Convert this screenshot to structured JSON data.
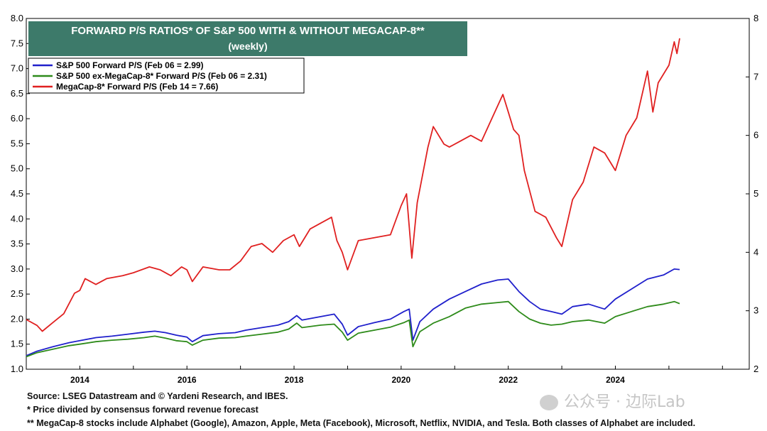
{
  "chart_data": {
    "type": "line",
    "title": "FORWARD P/S RATIOS* OF S&P 500 WITH & WITHOUT MEGACAP-8**",
    "subtitle": "(weekly)",
    "left_axis": {
      "ticks": [
        "1.0",
        "1.5",
        "2.0",
        "2.5",
        "3.0",
        "3.5",
        "4.0",
        "4.5",
        "5.0",
        "5.5",
        "6.0",
        "6.5",
        "7.0",
        "7.5",
        "8.0"
      ],
      "ylim": [
        1.0,
        8.0
      ]
    },
    "right_axis": {
      "ticks": [
        "2",
        "3",
        "4",
        "5",
        "6",
        "7",
        "8"
      ],
      "ylim": [
        2,
        8
      ]
    },
    "x_axis": {
      "ticks": [
        "2014",
        "2016",
        "2018",
        "2020",
        "2022",
        "2024"
      ],
      "xlim": [
        2013.0,
        2026.5
      ]
    },
    "grid": false,
    "legend_position": "top-left",
    "series": [
      {
        "name": "S&P 500 Forward P/S (Feb 06 = 2.99)",
        "color": "#2020cc",
        "axis": "left",
        "points": [
          [
            2013.0,
            1.27
          ],
          [
            2013.2,
            1.36
          ],
          [
            2013.5,
            1.45
          ],
          [
            2013.8,
            1.53
          ],
          [
            2014.0,
            1.57
          ],
          [
            2014.3,
            1.63
          ],
          [
            2014.6,
            1.66
          ],
          [
            2014.9,
            1.7
          ],
          [
            2015.2,
            1.74
          ],
          [
            2015.4,
            1.76
          ],
          [
            2015.6,
            1.73
          ],
          [
            2015.8,
            1.68
          ],
          [
            2016.0,
            1.64
          ],
          [
            2016.1,
            1.55
          ],
          [
            2016.3,
            1.67
          ],
          [
            2016.6,
            1.71
          ],
          [
            2016.9,
            1.73
          ],
          [
            2017.1,
            1.78
          ],
          [
            2017.4,
            1.83
          ],
          [
            2017.7,
            1.88
          ],
          [
            2017.9,
            1.95
          ],
          [
            2018.05,
            2.07
          ],
          [
            2018.15,
            1.98
          ],
          [
            2018.5,
            2.05
          ],
          [
            2018.75,
            2.1
          ],
          [
            2018.9,
            1.9
          ],
          [
            2019.0,
            1.68
          ],
          [
            2019.2,
            1.85
          ],
          [
            2019.5,
            1.93
          ],
          [
            2019.8,
            2.0
          ],
          [
            2020.05,
            2.15
          ],
          [
            2020.15,
            2.2
          ],
          [
            2020.22,
            1.58
          ],
          [
            2020.35,
            1.95
          ],
          [
            2020.6,
            2.2
          ],
          [
            2020.9,
            2.4
          ],
          [
            2021.2,
            2.55
          ],
          [
            2021.5,
            2.7
          ],
          [
            2021.8,
            2.78
          ],
          [
            2022.0,
            2.8
          ],
          [
            2022.2,
            2.55
          ],
          [
            2022.4,
            2.35
          ],
          [
            2022.6,
            2.2
          ],
          [
            2022.8,
            2.15
          ],
          [
            2023.0,
            2.1
          ],
          [
            2023.2,
            2.25
          ],
          [
            2023.5,
            2.3
          ],
          [
            2023.8,
            2.2
          ],
          [
            2024.0,
            2.4
          ],
          [
            2024.3,
            2.6
          ],
          [
            2024.6,
            2.8
          ],
          [
            2024.9,
            2.88
          ],
          [
            2025.1,
            3.0
          ],
          [
            2025.2,
            2.99
          ]
        ]
      },
      {
        "name": "S&P 500 ex-MegaCap-8* Forward P/S (Feb 06 = 2.31)",
        "color": "#2e8b1a",
        "axis": "left",
        "points": [
          [
            2013.0,
            1.25
          ],
          [
            2013.2,
            1.33
          ],
          [
            2013.5,
            1.4
          ],
          [
            2013.8,
            1.47
          ],
          [
            2014.0,
            1.5
          ],
          [
            2014.3,
            1.55
          ],
          [
            2014.6,
            1.58
          ],
          [
            2014.9,
            1.6
          ],
          [
            2015.2,
            1.63
          ],
          [
            2015.4,
            1.66
          ],
          [
            2015.6,
            1.62
          ],
          [
            2015.8,
            1.57
          ],
          [
            2016.0,
            1.55
          ],
          [
            2016.1,
            1.48
          ],
          [
            2016.3,
            1.58
          ],
          [
            2016.6,
            1.62
          ],
          [
            2016.9,
            1.63
          ],
          [
            2017.1,
            1.66
          ],
          [
            2017.4,
            1.7
          ],
          [
            2017.7,
            1.74
          ],
          [
            2017.9,
            1.8
          ],
          [
            2018.05,
            1.92
          ],
          [
            2018.15,
            1.83
          ],
          [
            2018.5,
            1.88
          ],
          [
            2018.75,
            1.9
          ],
          [
            2018.9,
            1.74
          ],
          [
            2019.0,
            1.58
          ],
          [
            2019.2,
            1.72
          ],
          [
            2019.5,
            1.78
          ],
          [
            2019.8,
            1.84
          ],
          [
            2020.05,
            1.93
          ],
          [
            2020.15,
            1.98
          ],
          [
            2020.22,
            1.45
          ],
          [
            2020.35,
            1.75
          ],
          [
            2020.6,
            1.92
          ],
          [
            2020.9,
            2.05
          ],
          [
            2021.2,
            2.22
          ],
          [
            2021.5,
            2.3
          ],
          [
            2021.8,
            2.33
          ],
          [
            2022.0,
            2.35
          ],
          [
            2022.2,
            2.15
          ],
          [
            2022.4,
            2.0
          ],
          [
            2022.6,
            1.92
          ],
          [
            2022.8,
            1.88
          ],
          [
            2023.0,
            1.9
          ],
          [
            2023.2,
            1.95
          ],
          [
            2023.5,
            1.98
          ],
          [
            2023.8,
            1.92
          ],
          [
            2024.0,
            2.05
          ],
          [
            2024.3,
            2.15
          ],
          [
            2024.6,
            2.25
          ],
          [
            2024.9,
            2.3
          ],
          [
            2025.1,
            2.35
          ],
          [
            2025.2,
            2.31
          ]
        ]
      },
      {
        "name": "MegaCap-8* Forward P/S (Feb 14 = 7.66)",
        "color": "#e02020",
        "axis": "right",
        "points": [
          [
            2013.0,
            2.85
          ],
          [
            2013.2,
            2.75
          ],
          [
            2013.3,
            2.65
          ],
          [
            2013.5,
            2.8
          ],
          [
            2013.7,
            2.95
          ],
          [
            2013.9,
            3.3
          ],
          [
            2014.0,
            3.35
          ],
          [
            2014.1,
            3.55
          ],
          [
            2014.3,
            3.45
          ],
          [
            2014.5,
            3.55
          ],
          [
            2014.8,
            3.6
          ],
          [
            2015.0,
            3.65
          ],
          [
            2015.3,
            3.75
          ],
          [
            2015.5,
            3.7
          ],
          [
            2015.7,
            3.6
          ],
          [
            2015.9,
            3.75
          ],
          [
            2016.0,
            3.7
          ],
          [
            2016.1,
            3.5
          ],
          [
            2016.3,
            3.75
          ],
          [
            2016.6,
            3.7
          ],
          [
            2016.8,
            3.7
          ],
          [
            2017.0,
            3.85
          ],
          [
            2017.2,
            4.1
          ],
          [
            2017.4,
            4.15
          ],
          [
            2017.6,
            4.0
          ],
          [
            2017.8,
            4.2
          ],
          [
            2018.0,
            4.3
          ],
          [
            2018.1,
            4.1
          ],
          [
            2018.3,
            4.4
          ],
          [
            2018.5,
            4.5
          ],
          [
            2018.7,
            4.6
          ],
          [
            2018.8,
            4.2
          ],
          [
            2018.9,
            4.0
          ],
          [
            2019.0,
            3.7
          ],
          [
            2019.2,
            4.2
          ],
          [
            2019.5,
            4.25
          ],
          [
            2019.8,
            4.3
          ],
          [
            2020.0,
            4.8
          ],
          [
            2020.1,
            5.0
          ],
          [
            2020.2,
            3.9
          ],
          [
            2020.3,
            4.85
          ],
          [
            2020.5,
            5.8
          ],
          [
            2020.6,
            6.15
          ],
          [
            2020.8,
            5.85
          ],
          [
            2020.9,
            5.8
          ],
          [
            2021.1,
            5.9
          ],
          [
            2021.3,
            6.0
          ],
          [
            2021.5,
            5.9
          ],
          [
            2021.7,
            6.3
          ],
          [
            2021.9,
            6.7
          ],
          [
            2022.0,
            6.4
          ],
          [
            2022.1,
            6.1
          ],
          [
            2022.2,
            6.0
          ],
          [
            2022.3,
            5.4
          ],
          [
            2022.5,
            4.7
          ],
          [
            2022.7,
            4.6
          ],
          [
            2022.9,
            4.25
          ],
          [
            2023.0,
            4.1
          ],
          [
            2023.2,
            4.9
          ],
          [
            2023.4,
            5.2
          ],
          [
            2023.6,
            5.8
          ],
          [
            2023.8,
            5.7
          ],
          [
            2024.0,
            5.4
          ],
          [
            2024.2,
            6.0
          ],
          [
            2024.4,
            6.3
          ],
          [
            2024.6,
            7.1
          ],
          [
            2024.7,
            6.4
          ],
          [
            2024.8,
            6.9
          ],
          [
            2025.0,
            7.2
          ],
          [
            2025.1,
            7.6
          ],
          [
            2025.15,
            7.4
          ],
          [
            2025.2,
            7.66
          ]
        ]
      }
    ]
  },
  "notes": {
    "source": "Source: LSEG Datastream and © Yardeni Research, and IBES.",
    "footnote1": "* Price divided by consensus forward revenue forecast",
    "footnote2": "** MegaCap-8 stocks include Alphabet (Google), Amazon, Apple, Meta (Facebook), Microsoft, Netflix, NVIDIA, and Tesla. Both classes of Alphabet are included."
  },
  "watermark": {
    "text": "公众号 · 边际Lab"
  },
  "colors": {
    "title_bg": "#3d7a6a",
    "title_text": "#ffffff",
    "axis": "#000000",
    "background": "#ffffff"
  }
}
